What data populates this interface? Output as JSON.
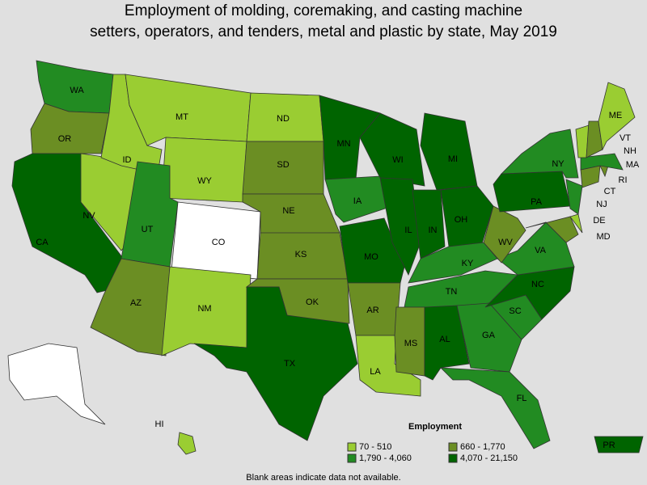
{
  "title_lines": [
    "Employment of molding, coremaking, and casting machine",
    "setters, operators, and tenders, metal and plastic by state, May 2019"
  ],
  "legend": {
    "title": "Employment",
    "items": [
      {
        "label": "70 - 510",
        "color": "#9acd32"
      },
      {
        "label": "660 - 1,770",
        "color": "#6b8e23"
      },
      {
        "label": "1,790 - 4,060",
        "color": "#228b22"
      },
      {
        "label": "4,070 - 21,150",
        "color": "#006400"
      }
    ],
    "blank_color": "#ffffff"
  },
  "note": "Blank areas indicate data not available.",
  "states": [
    {
      "label": "WA",
      "category": 2
    },
    {
      "label": "OR",
      "category": 1
    },
    {
      "label": "CA",
      "category": 3
    },
    {
      "label": "NV",
      "category": 0
    },
    {
      "label": "ID",
      "category": 0
    },
    {
      "label": "MT",
      "category": 0
    },
    {
      "label": "WY",
      "category": 0
    },
    {
      "label": "UT",
      "category": 2
    },
    {
      "label": "CO",
      "category": null
    },
    {
      "label": "AZ",
      "category": 1
    },
    {
      "label": "NM",
      "category": 0
    },
    {
      "label": "ND",
      "category": 0
    },
    {
      "label": "SD",
      "category": 1
    },
    {
      "label": "NE",
      "category": 1
    },
    {
      "label": "KS",
      "category": 1
    },
    {
      "label": "OK",
      "category": 1
    },
    {
      "label": "TX",
      "category": 3
    },
    {
      "label": "MN",
      "category": 3
    },
    {
      "label": "IA",
      "category": 2
    },
    {
      "label": "MO",
      "category": 3
    },
    {
      "label": "AR",
      "category": 1
    },
    {
      "label": "LA",
      "category": 0
    },
    {
      "label": "WI",
      "category": 3
    },
    {
      "label": "IL",
      "category": 3
    },
    {
      "label": "MI",
      "category": 3
    },
    {
      "label": "IN",
      "category": 3
    },
    {
      "label": "OH",
      "category": 3
    },
    {
      "label": "KY",
      "category": 2
    },
    {
      "label": "TN",
      "category": 2
    },
    {
      "label": "MS",
      "category": 1
    },
    {
      "label": "AL",
      "category": 3
    },
    {
      "label": "GA",
      "category": 2
    },
    {
      "label": "FL",
      "category": 2
    },
    {
      "label": "SC",
      "category": 2
    },
    {
      "label": "NC",
      "category": 3
    },
    {
      "label": "VA",
      "category": 2
    },
    {
      "label": "WV",
      "category": 1
    },
    {
      "label": "PA",
      "category": 3
    },
    {
      "label": "NY",
      "category": 2
    },
    {
      "label": "MD",
      "category": 1
    },
    {
      "label": "DE",
      "category": 0
    },
    {
      "label": "NJ",
      "category": 2
    },
    {
      "label": "CT",
      "category": 1
    },
    {
      "label": "RI",
      "category": 1
    },
    {
      "label": "MA",
      "category": 2
    },
    {
      "label": "VT",
      "category": 0
    },
    {
      "label": "NH",
      "category": 1
    },
    {
      "label": "ME",
      "category": 0
    },
    {
      "label": "HI",
      "category": 0
    },
    {
      "label": "PR",
      "category": 3
    },
    {
      "label": null,
      "category": null
    }
  ]
}
